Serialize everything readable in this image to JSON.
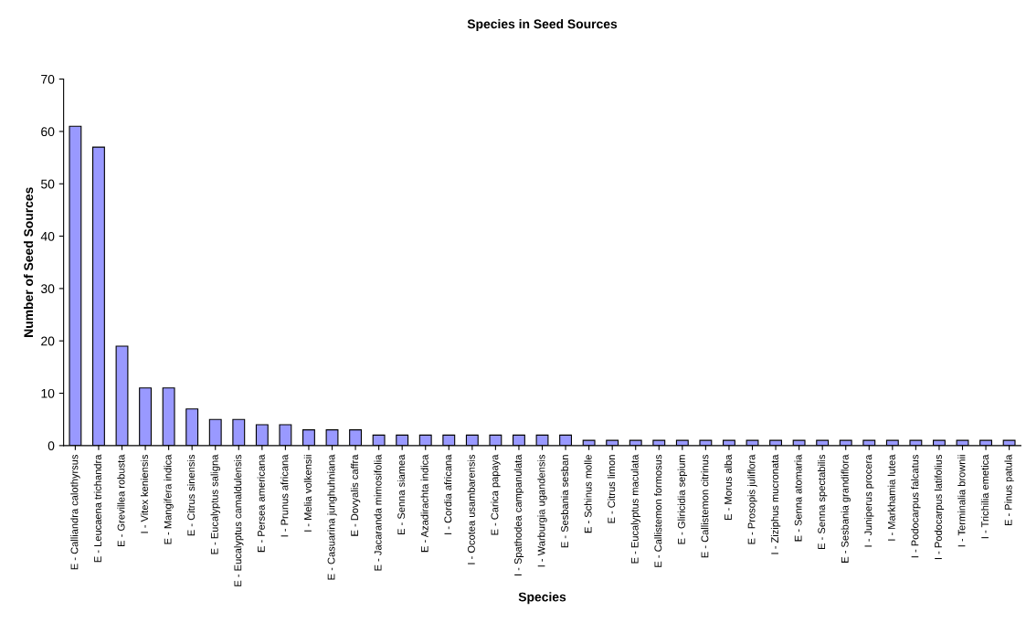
{
  "chart_data": {
    "type": "bar",
    "title": "Species in Seed Sources",
    "xlabel": "Species",
    "ylabel": "Number of Seed Sources",
    "categories": [
      "E - Calliandra calothyrsus",
      "E - Leucaena trichandra",
      "E - Grevillea robusta",
      "I - Vitex keniensis",
      "E - Mangifera indica",
      "E - Citrus sinensis",
      "E - Eucalyptus saligna",
      "E - Eucalyptus camaldulensis",
      "E - Persea americana",
      "I - Prunus africana",
      "I - Melia volkensii",
      "E - Casuarina junghuhniana",
      "E - Dovyalis caffra",
      "E - Jacaranda mimosifolia",
      "E - Senna siamea",
      "E - Azadirachta indica",
      "I - Cordia africana",
      "I - Ocotea usambarensis",
      "E - Carica papaya",
      "I - Spathodea campanulata",
      "I - Warburgia ugandensis",
      "E - Sesbania sesban",
      "E - Schinus molle",
      "E - Citrus limon",
      "E - Eucalyptus maculata",
      "E - Callistemon formosus",
      "E - Gliricidia sepium",
      "E - Callistemon citrinus",
      "E - Morus alba",
      "E - Prosopis juliflora",
      "I - Ziziphus mucronata",
      "E - Senna atomaria",
      "E - Senna spectabilis",
      "E - Sesbania grandiflora",
      "I - Juniperus procera",
      "I - Markhamia lutea",
      "I - Podocarpus falcatus",
      "I - Podocarpus latifolius",
      "I - Terminalia brownii",
      "I - Trichilia emetica",
      "E - Pinus patula"
    ],
    "values": [
      61,
      57,
      19,
      11,
      11,
      7,
      5,
      5,
      4,
      4,
      3,
      3,
      3,
      2,
      2,
      2,
      2,
      2,
      2,
      2,
      2,
      2,
      1,
      1,
      1,
      1,
      1,
      1,
      1,
      1,
      1,
      1,
      1,
      1,
      1,
      1,
      1,
      1,
      1,
      1,
      1
    ],
    "color": "#9999ff",
    "ylim": [
      0,
      70
    ],
    "yticks": [
      0,
      10,
      20,
      30,
      40,
      50,
      60,
      70
    ],
    "grid": false,
    "legend": false
  }
}
